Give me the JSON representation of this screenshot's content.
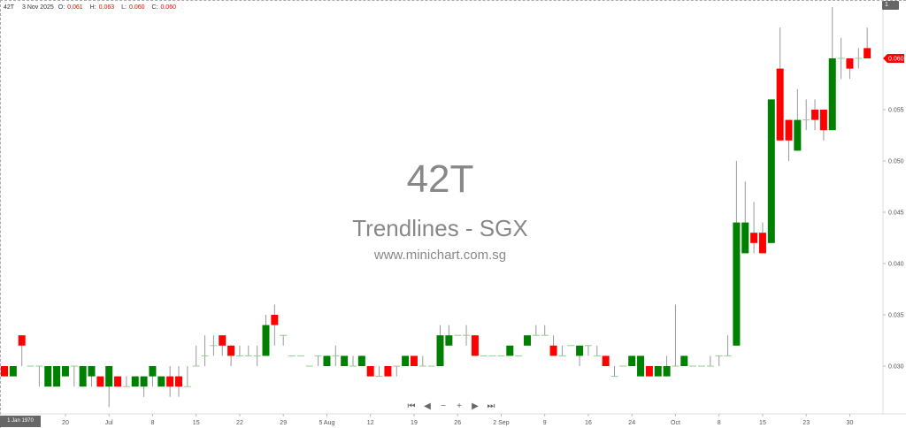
{
  "header": {
    "symbol": "42T",
    "date": "3 Nov 2025",
    "o_label": "O:",
    "o": "0.061",
    "h_label": "H:",
    "h": "0.063",
    "l_label": "L:",
    "l": "0.060",
    "c_label": "C:",
    "c": "0.060"
  },
  "watermark": {
    "code": "42T",
    "name": "Trendlines - SGX",
    "site": "www.minichart.com.sg"
  },
  "page_indicator": "1",
  "crosshair_date": "1 Jan 1970",
  "nav": {
    "first": "⏮",
    "prev": "◀",
    "zoom_out": "−",
    "zoom_in": "+",
    "next": "▶",
    "last": "⏭"
  },
  "colors": {
    "up": "#008000",
    "down": "#ff0000",
    "wick": "#999999",
    "last_price": "#ff0000"
  },
  "chart_data": {
    "type": "candlestick",
    "title": "",
    "ylim": [
      0.0255,
      0.0655
    ],
    "yticks": [
      "0.030",
      "0.035",
      "0.040",
      "0.045",
      "0.050",
      "0.055"
    ],
    "last_price": "0.060",
    "grid": false,
    "xtick_labels": [
      "20",
      "Jul",
      "8",
      "15",
      "22",
      "29",
      "5 Aug",
      "12",
      "19",
      "26",
      "2 Sep",
      "9",
      "16",
      "24",
      "Oct",
      "8",
      "15",
      "23",
      "30"
    ],
    "ohlc": [
      [
        0.03,
        0.03,
        0.029,
        0.029
      ],
      [
        0.029,
        0.03,
        0.029,
        0.03
      ],
      [
        0.033,
        0.033,
        0.03,
        0.032
      ],
      [
        0.03,
        0.03,
        0.03,
        0.03
      ],
      [
        0.03,
        0.03,
        0.028,
        0.03
      ],
      [
        0.028,
        0.03,
        0.028,
        0.03
      ],
      [
        0.028,
        0.03,
        0.028,
        0.03
      ],
      [
        0.029,
        0.03,
        0.029,
        0.03
      ],
      [
        0.03,
        0.03,
        0.028,
        0.03
      ],
      [
        0.028,
        0.03,
        0.028,
        0.03
      ],
      [
        0.029,
        0.03,
        0.028,
        0.03
      ],
      [
        0.029,
        0.029,
        0.028,
        0.028
      ],
      [
        0.028,
        0.03,
        0.026,
        0.03
      ],
      [
        0.029,
        0.029,
        0.028,
        0.028
      ],
      [
        0.028,
        0.029,
        0.028,
        0.028
      ],
      [
        0.028,
        0.029,
        0.028,
        0.029
      ],
      [
        0.028,
        0.029,
        0.027,
        0.029
      ],
      [
        0.029,
        0.03,
        0.028,
        0.03
      ],
      [
        0.028,
        0.029,
        0.028,
        0.029
      ],
      [
        0.029,
        0.03,
        0.027,
        0.028
      ],
      [
        0.029,
        0.03,
        0.027,
        0.028
      ],
      [
        0.028,
        0.03,
        0.028,
        0.028
      ],
      [
        0.03,
        0.032,
        0.03,
        0.03
      ],
      [
        0.031,
        0.033,
        0.03,
        0.031
      ],
      [
        0.032,
        0.033,
        0.031,
        0.032
      ],
      [
        0.033,
        0.033,
        0.031,
        0.032
      ],
      [
        0.032,
        0.032,
        0.03,
        0.031
      ],
      [
        0.031,
        0.032,
        0.031,
        0.031
      ],
      [
        0.031,
        0.032,
        0.031,
        0.031
      ],
      [
        0.031,
        0.032,
        0.03,
        0.031
      ],
      [
        0.031,
        0.035,
        0.031,
        0.034
      ],
      [
        0.035,
        0.036,
        0.032,
        0.034
      ],
      [
        0.033,
        0.033,
        0.032,
        0.033
      ],
      [
        0.031,
        0.031,
        0.031,
        0.031
      ],
      [
        0.031,
        0.031,
        0.031,
        0.031
      ],
      [
        0.03,
        0.03,
        0.03,
        0.03
      ],
      [
        0.031,
        0.031,
        0.03,
        0.031
      ],
      [
        0.03,
        0.031,
        0.03,
        0.031
      ],
      [
        0.031,
        0.032,
        0.03,
        0.031
      ],
      [
        0.03,
        0.031,
        0.03,
        0.031
      ],
      [
        0.03,
        0.031,
        0.03,
        0.03
      ],
      [
        0.03,
        0.031,
        0.03,
        0.031
      ],
      [
        0.03,
        0.03,
        0.029,
        0.029
      ],
      [
        0.029,
        0.03,
        0.029,
        0.029
      ],
      [
        0.03,
        0.03,
        0.029,
        0.029
      ],
      [
        0.03,
        0.03,
        0.029,
        0.03
      ],
      [
        0.03,
        0.031,
        0.03,
        0.031
      ],
      [
        0.031,
        0.031,
        0.03,
        0.03
      ],
      [
        0.03,
        0.031,
        0.03,
        0.03
      ],
      [
        0.03,
        0.03,
        0.03,
        0.03
      ],
      [
        0.03,
        0.034,
        0.03,
        0.033
      ],
      [
        0.032,
        0.034,
        0.032,
        0.033
      ],
      [
        0.033,
        0.033,
        0.033,
        0.033
      ],
      [
        0.033,
        0.034,
        0.032,
        0.033
      ],
      [
        0.033,
        0.033,
        0.031,
        0.031
      ],
      [
        0.031,
        0.031,
        0.031,
        0.031
      ],
      [
        0.031,
        0.031,
        0.031,
        0.031
      ],
      [
        0.031,
        0.031,
        0.031,
        0.031
      ],
      [
        0.031,
        0.032,
        0.031,
        0.032
      ],
      [
        0.031,
        0.031,
        0.031,
        0.031
      ],
      [
        0.032,
        0.033,
        0.032,
        0.033
      ],
      [
        0.033,
        0.034,
        0.033,
        0.033
      ],
      [
        0.033,
        0.034,
        0.033,
        0.033
      ],
      [
        0.032,
        0.033,
        0.031,
        0.031
      ],
      [
        0.031,
        0.032,
        0.031,
        0.031
      ],
      [
        0.032,
        0.032,
        0.032,
        0.032
      ],
      [
        0.031,
        0.032,
        0.03,
        0.032
      ],
      [
        0.032,
        0.032,
        0.031,
        0.032
      ],
      [
        0.031,
        0.032,
        0.031,
        0.031
      ],
      [
        0.031,
        0.031,
        0.03,
        0.03
      ],
      [
        0.029,
        0.03,
        0.029,
        0.029
      ],
      [
        0.03,
        0.03,
        0.03,
        0.03
      ],
      [
        0.03,
        0.031,
        0.03,
        0.031
      ],
      [
        0.029,
        0.031,
        0.029,
        0.031
      ],
      [
        0.03,
        0.03,
        0.029,
        0.029
      ],
      [
        0.029,
        0.03,
        0.029,
        0.03
      ],
      [
        0.029,
        0.031,
        0.029,
        0.03
      ],
      [
        0.03,
        0.036,
        0.03,
        0.03
      ],
      [
        0.03,
        0.031,
        0.03,
        0.031
      ],
      [
        0.03,
        0.03,
        0.03,
        0.03
      ],
      [
        0.03,
        0.03,
        0.03,
        0.03
      ],
      [
        0.03,
        0.031,
        0.03,
        0.03
      ],
      [
        0.031,
        0.031,
        0.03,
        0.031
      ],
      [
        0.031,
        0.033,
        0.031,
        0.031
      ],
      [
        0.032,
        0.05,
        0.032,
        0.044
      ],
      [
        0.041,
        0.048,
        0.041,
        0.044
      ],
      [
        0.043,
        0.046,
        0.041,
        0.042
      ],
      [
        0.043,
        0.044,
        0.041,
        0.041
      ],
      [
        0.042,
        0.056,
        0.042,
        0.056
      ],
      [
        0.059,
        0.063,
        0.052,
        0.052
      ],
      [
        0.054,
        0.054,
        0.05,
        0.052
      ],
      [
        0.051,
        0.057,
        0.051,
        0.054
      ],
      [
        0.054,
        0.056,
        0.053,
        0.054
      ],
      [
        0.055,
        0.056,
        0.053,
        0.054
      ],
      [
        0.055,
        0.055,
        0.052,
        0.053
      ],
      [
        0.053,
        0.065,
        0.053,
        0.06
      ],
      [
        0.06,
        0.062,
        0.058,
        0.06
      ],
      [
        0.06,
        0.06,
        0.058,
        0.059
      ],
      [
        0.06,
        0.061,
        0.059,
        0.06
      ],
      [
        0.061,
        0.063,
        0.06,
        0.06
      ]
    ]
  }
}
